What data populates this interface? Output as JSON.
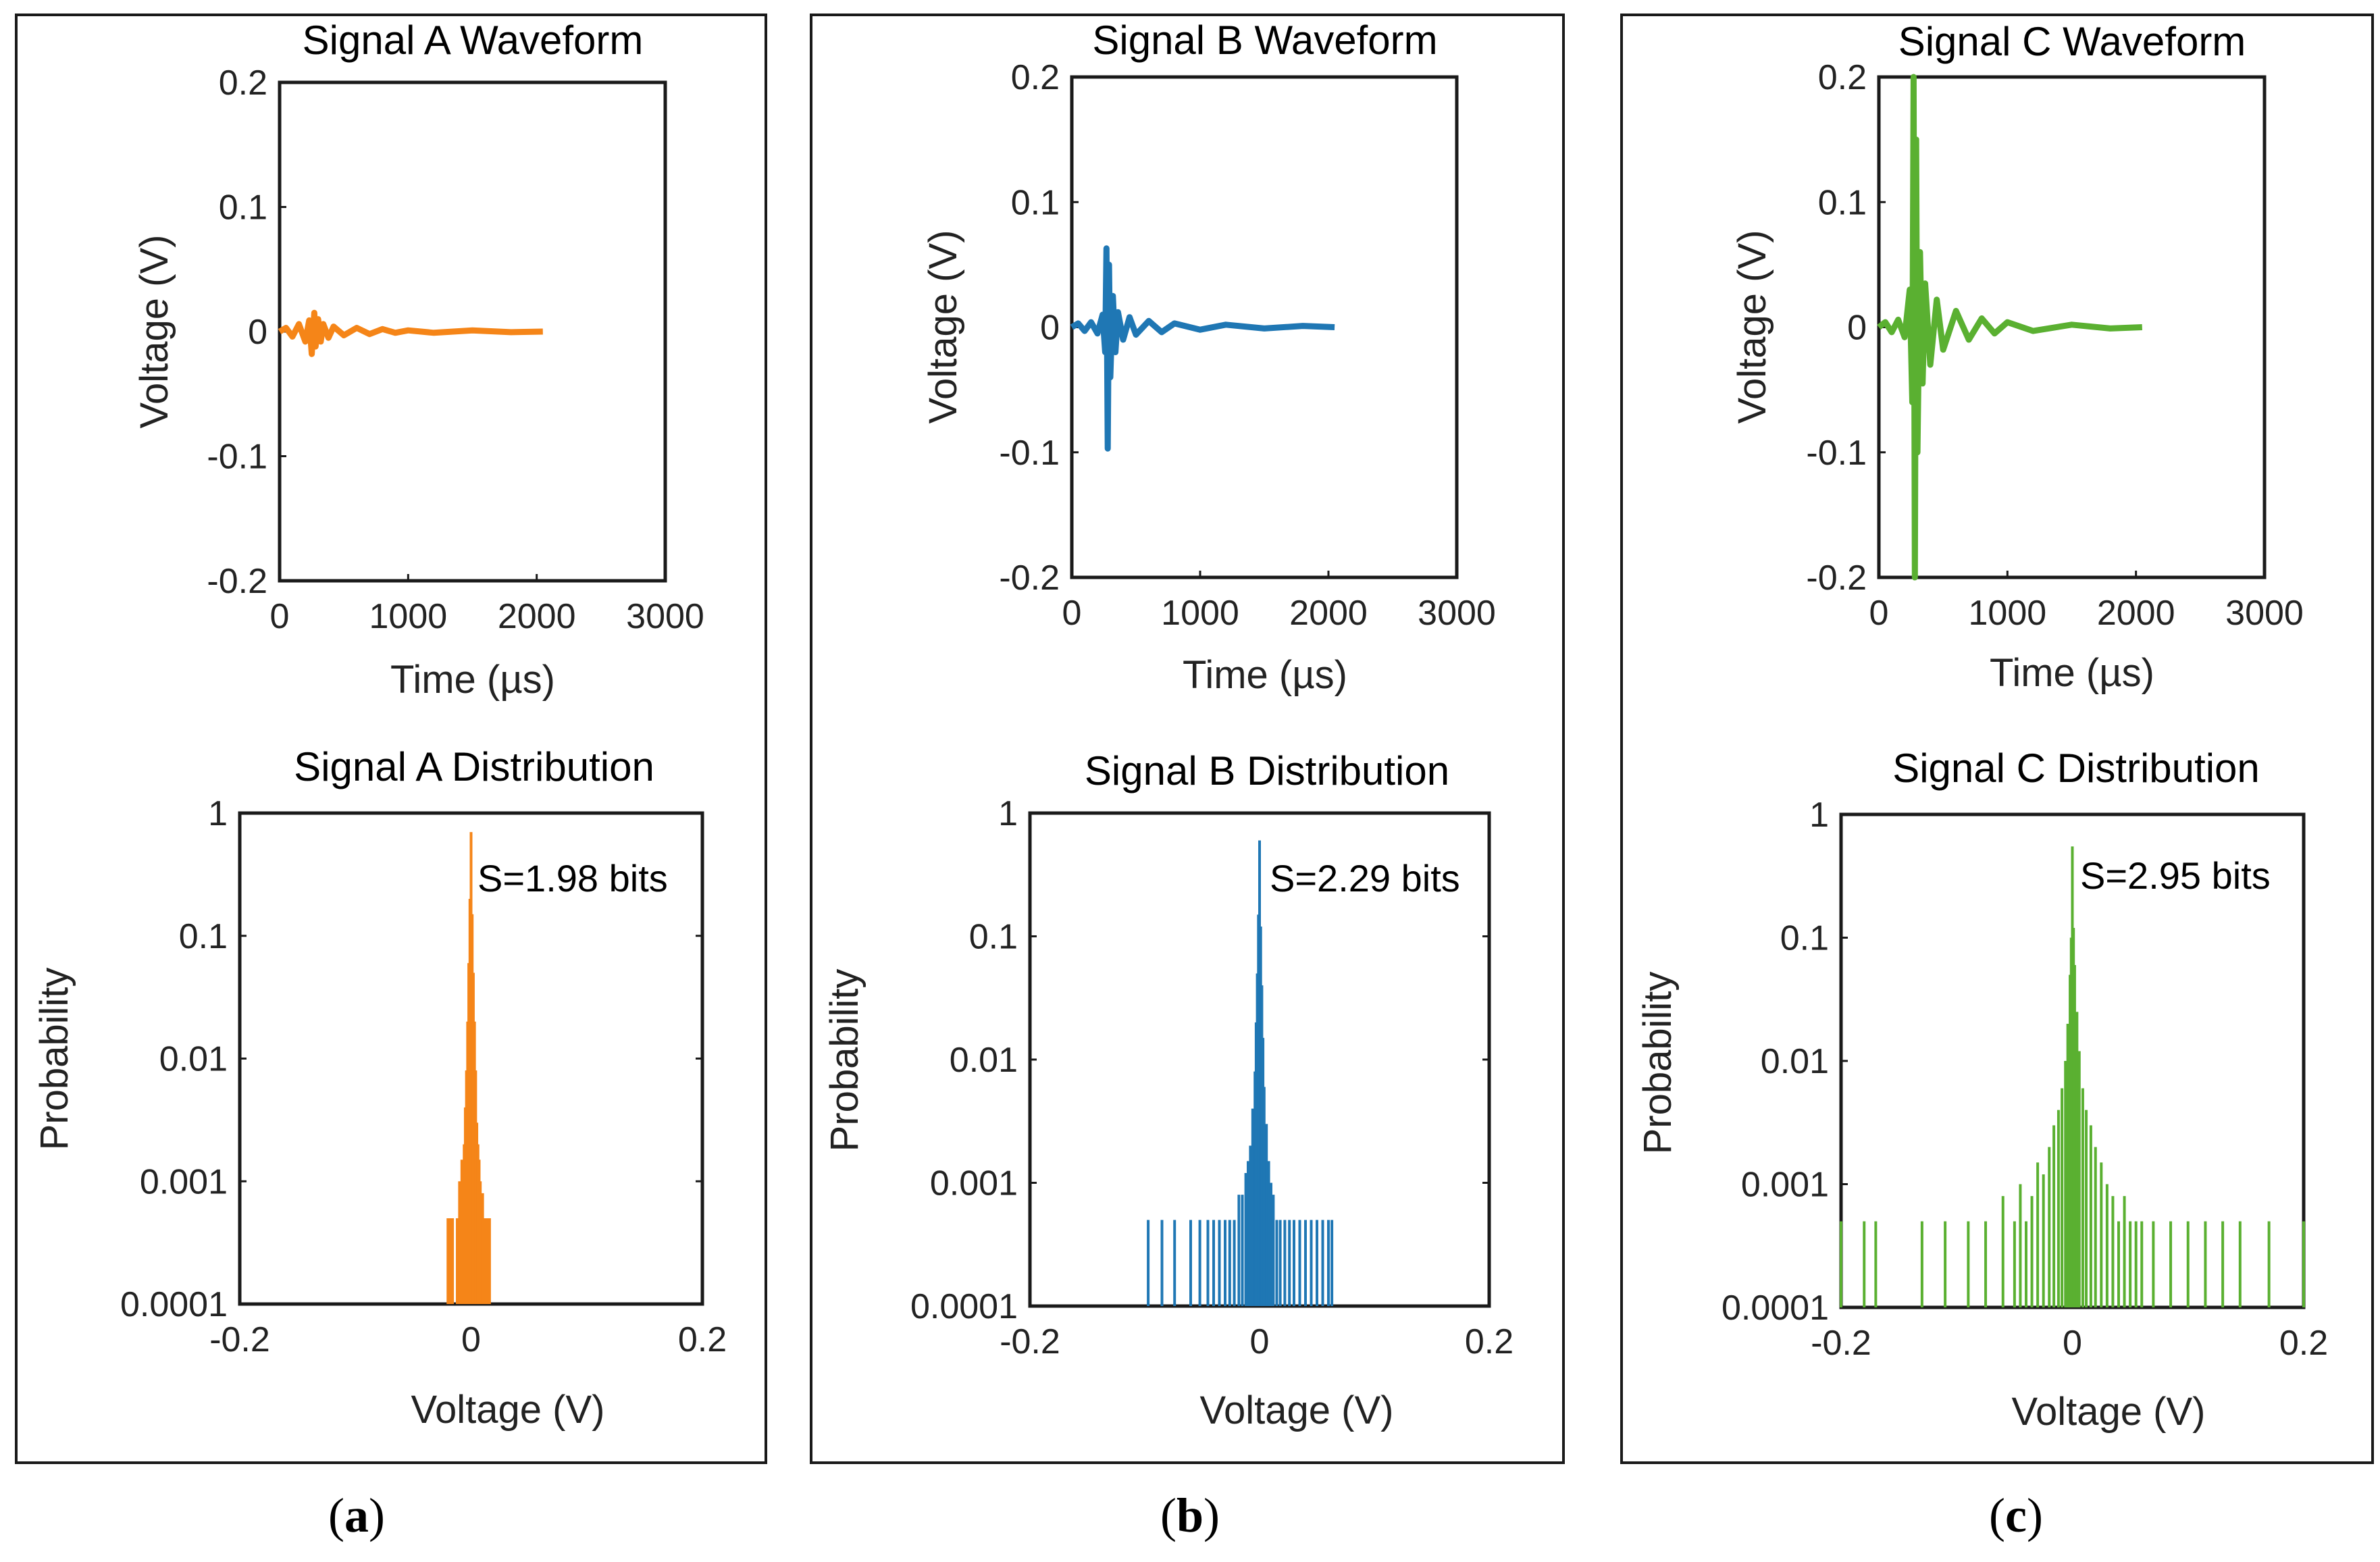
{
  "chart_data": [
    {
      "type": "line",
      "panel": "a",
      "title": "Signal A Waveform",
      "xlabel": "Time (µs)",
      "ylabel": "Voltage (V)",
      "xlim": [
        0,
        3000
      ],
      "ylim": [
        -0.2,
        0.2
      ],
      "xticks": [
        0,
        1000,
        2000,
        3000
      ],
      "xtick_labels": [
        "0",
        "1000",
        "2000",
        "3000"
      ],
      "yticks": [
        0.2,
        0.1,
        0,
        -0.1,
        -0.2
      ],
      "ytick_labels": [
        "0.2",
        "0.1",
        "0",
        "-0.1",
        "-0.2"
      ],
      "color": "#f58518",
      "series": [
        {
          "name": "Signal A",
          "x": [
            0,
            50,
            100,
            150,
            200,
            230,
            250,
            270,
            280,
            300,
            320,
            340,
            380,
            420,
            500,
            600,
            700,
            800,
            900,
            1000,
            1200,
            1500,
            1800,
            2048
          ],
          "y": [
            0,
            0.003,
            -0.004,
            0.006,
            -0.008,
            0.009,
            -0.018,
            0.015,
            -0.012,
            0.01,
            -0.008,
            0.006,
            -0.005,
            0.004,
            -0.003,
            0.003,
            -0.002,
            0.002,
            -0.001,
            0.001,
            -0.001,
            0.001,
            -0.0005,
            0
          ]
        }
      ]
    },
    {
      "type": "line",
      "panel": "b",
      "title": "Signal B Waveform",
      "xlabel": "Time (µs)",
      "ylabel": "Voltage (V)",
      "xlim": [
        0,
        3000
      ],
      "ylim": [
        -0.2,
        0.2
      ],
      "xticks": [
        0,
        1000,
        2000,
        3000
      ],
      "xtick_labels": [
        "0",
        "1000",
        "2000",
        "3000"
      ],
      "yticks": [
        0.2,
        0.1,
        0,
        -0.1,
        -0.2
      ],
      "ytick_labels": [
        "0.2",
        "0.1",
        "0",
        "-0.1",
        "-0.2"
      ],
      "color": "#1f77b4",
      "series": [
        {
          "name": "Signal B",
          "x": [
            0,
            50,
            100,
            150,
            200,
            240,
            260,
            270,
            280,
            290,
            300,
            320,
            340,
            360,
            400,
            450,
            500,
            600,
            700,
            800,
            1000,
            1200,
            1500,
            1800,
            2048
          ],
          "y": [
            0,
            0.003,
            -0.003,
            0.004,
            -0.005,
            0.01,
            -0.02,
            0.063,
            -0.097,
            0.05,
            -0.04,
            0.025,
            -0.02,
            0.012,
            -0.01,
            0.008,
            -0.006,
            0.005,
            -0.004,
            0.003,
            -0.002,
            0.002,
            -0.001,
            0.001,
            0
          ]
        }
      ]
    },
    {
      "type": "line",
      "panel": "c",
      "title": "Signal C Waveform",
      "xlabel": "Time (µs)",
      "ylabel": "Voltage (V)",
      "xlim": [
        0,
        3000
      ],
      "ylim": [
        -0.2,
        0.2
      ],
      "xticks": [
        0,
        1000,
        2000,
        3000
      ],
      "xtick_labels": [
        "0",
        "1000",
        "2000",
        "3000"
      ],
      "yticks": [
        0.2,
        0.1,
        0,
        -0.1,
        -0.2
      ],
      "ytick_labels": [
        "0.2",
        "0.1",
        "0",
        "-0.1",
        "-0.2"
      ],
      "color": "#5ab031",
      "series": [
        {
          "name": "Signal C",
          "x": [
            0,
            50,
            100,
            150,
            200,
            240,
            260,
            270,
            280,
            290,
            300,
            320,
            340,
            360,
            400,
            450,
            500,
            600,
            700,
            800,
            900,
            1000,
            1200,
            1500,
            1800,
            2048
          ],
          "y": [
            0,
            0.004,
            -0.004,
            0.006,
            -0.008,
            0.03,
            -0.06,
            0.2,
            -0.2,
            0.15,
            -0.1,
            0.06,
            -0.045,
            0.035,
            -0.03,
            0.022,
            -0.018,
            0.013,
            -0.01,
            0.007,
            -0.005,
            0.004,
            -0.003,
            0.002,
            -0.001,
            0
          ]
        }
      ]
    },
    {
      "type": "bar",
      "panel": "a",
      "title": "Signal A Distribution",
      "xlabel": "Voltage (V)",
      "ylabel": "Probability",
      "xlim": [
        -0.2,
        0.2
      ],
      "ylim": [
        0.0001,
        1
      ],
      "yscale": "log",
      "xticks": [
        -0.2,
        0,
        0.2
      ],
      "xtick_labels": [
        "-0.2",
        "0",
        "0.2"
      ],
      "yticks": [
        1,
        0.1,
        0.01,
        0.001,
        0.0001
      ],
      "ytick_labels": [
        "1",
        "0.1",
        "0.01",
        "0.001",
        "0.0001"
      ],
      "annotation": "S=1.98 bits",
      "color": "#f58518",
      "x": [
        -0.02,
        -0.018,
        -0.016,
        -0.012,
        -0.01,
        -0.008,
        -0.006,
        -0.005,
        -0.004,
        -0.003,
        -0.002,
        -0.001,
        0,
        0.001,
        0.002,
        0.003,
        0.004,
        0.005,
        0.006,
        0.007,
        0.008,
        0.01,
        0.012,
        0.014,
        0.016
      ],
      "values": [
        0.0005,
        0.0005,
        0.0005,
        0.0005,
        0.001,
        0.0015,
        0.002,
        0.004,
        0.008,
        0.02,
        0.06,
        0.2,
        0.7,
        0.15,
        0.05,
        0.02,
        0.008,
        0.003,
        0.002,
        0.0015,
        0.001,
        0.0008,
        0.0005,
        0.0005,
        0.0005
      ]
    },
    {
      "type": "bar",
      "panel": "b",
      "title": "Signal B Distribution",
      "xlabel": "Voltage (V)",
      "ylabel": "Probability",
      "xlim": [
        -0.2,
        0.2
      ],
      "ylim": [
        0.0001,
        1
      ],
      "yscale": "log",
      "xticks": [
        -0.2,
        0,
        0.2
      ],
      "xtick_labels": [
        "-0.2",
        "0",
        "0.2"
      ],
      "yticks": [
        1,
        0.1,
        0.01,
        0.001,
        0.0001
      ],
      "ytick_labels": [
        "1",
        "0.1",
        "0.01",
        "0.001",
        "0.0001"
      ],
      "annotation": "S=2.29 bits",
      "color": "#1f77b4",
      "x": [
        -0.097,
        -0.085,
        -0.074,
        -0.06,
        -0.052,
        -0.045,
        -0.04,
        -0.035,
        -0.03,
        -0.026,
        -0.022,
        -0.018,
        -0.015,
        -0.012,
        -0.01,
        -0.008,
        -0.006,
        -0.004,
        -0.003,
        -0.002,
        -0.001,
        0,
        0.001,
        0.002,
        0.003,
        0.004,
        0.006,
        0.008,
        0.01,
        0.012,
        0.015,
        0.018,
        0.022,
        0.026,
        0.03,
        0.035,
        0.04,
        0.045,
        0.05,
        0.055,
        0.06,
        0.063
      ],
      "values": [
        0.0005,
        0.0005,
        0.0005,
        0.0005,
        0.0005,
        0.0005,
        0.0005,
        0.0005,
        0.0005,
        0.0005,
        0.0005,
        0.0008,
        0.0008,
        0.0012,
        0.0015,
        0.002,
        0.004,
        0.008,
        0.02,
        0.05,
        0.15,
        0.6,
        0.12,
        0.04,
        0.015,
        0.006,
        0.003,
        0.0015,
        0.001,
        0.0008,
        0.0005,
        0.0005,
        0.0005,
        0.0005,
        0.0005,
        0.0005,
        0.0005,
        0.0005,
        0.0005,
        0.0005,
        0.0005,
        0.0005
      ]
    },
    {
      "type": "bar",
      "panel": "c",
      "title": "Signal C Distribution",
      "xlabel": "Voltage (V)",
      "ylabel": "Probability",
      "xlim": [
        -0.2,
        0.2
      ],
      "ylim": [
        0.0001,
        1
      ],
      "yscale": "log",
      "xticks": [
        -0.2,
        0,
        0.2
      ],
      "xtick_labels": [
        "-0.2",
        "0",
        "0.2"
      ],
      "yticks": [
        1,
        0.1,
        0.01,
        0.001,
        0.0001
      ],
      "ytick_labels": [
        "1",
        "0.1",
        "0.01",
        "0.001",
        "0.0001"
      ],
      "annotation": "S=2.95 bits",
      "color": "#5ab031",
      "x": [
        -0.2,
        -0.18,
        -0.17,
        -0.13,
        -0.11,
        -0.09,
        -0.075,
        -0.06,
        -0.05,
        -0.045,
        -0.04,
        -0.035,
        -0.03,
        -0.025,
        -0.02,
        -0.016,
        -0.012,
        -0.009,
        -0.006,
        -0.004,
        -0.002,
        -0.001,
        0,
        0.001,
        0.002,
        0.004,
        0.006,
        0.009,
        0.012,
        0.016,
        0.02,
        0.025,
        0.03,
        0.035,
        0.04,
        0.045,
        0.05,
        0.055,
        0.06,
        0.07,
        0.085,
        0.1,
        0.115,
        0.13,
        0.145,
        0.17,
        0.2
      ],
      "values": [
        0.0005,
        0.0005,
        0.0005,
        0.0005,
        0.0005,
        0.0005,
        0.0005,
        0.0008,
        0.0005,
        0.001,
        0.0005,
        0.0008,
        0.0015,
        0.0012,
        0.002,
        0.003,
        0.004,
        0.006,
        0.01,
        0.02,
        0.05,
        0.1,
        0.55,
        0.12,
        0.06,
        0.025,
        0.012,
        0.006,
        0.004,
        0.003,
        0.002,
        0.0015,
        0.001,
        0.0008,
        0.0005,
        0.0008,
        0.0005,
        0.0005,
        0.0005,
        0.0005,
        0.0005,
        0.0005,
        0.0005,
        0.0005,
        0.0005,
        0.0005,
        0.0005
      ]
    }
  ],
  "captions": [
    "(a)",
    "(b)",
    "(c)"
  ],
  "caption_letters": [
    "a",
    "b",
    "c"
  ]
}
